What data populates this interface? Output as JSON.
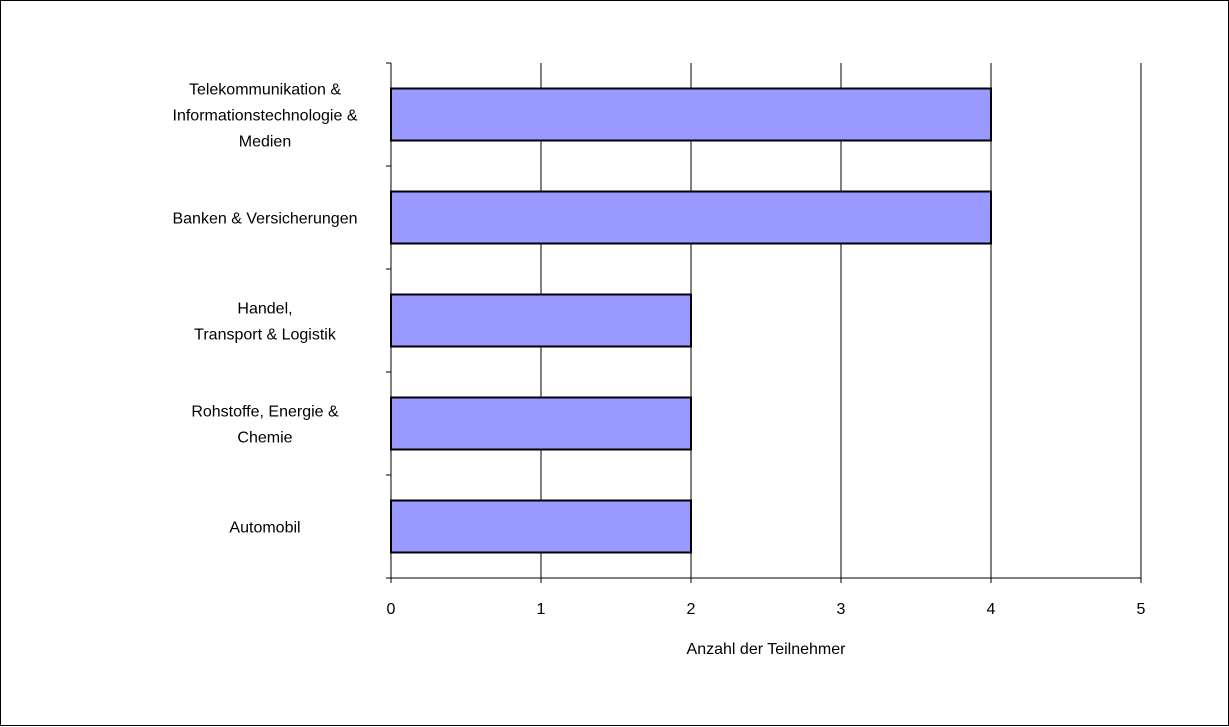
{
  "chart_data": {
    "type": "bar",
    "orientation": "horizontal",
    "categories": [
      [
        "Telekommunikation &",
        "Informationstechnologie &",
        "Medien"
      ],
      [
        "Banken & Versicherungen"
      ],
      [
        "Handel,",
        "Transport & Logistik"
      ],
      [
        "Rohstoffe, Energie &",
        "Chemie"
      ],
      [
        "Automobil"
      ]
    ],
    "values": [
      4,
      4,
      2,
      2,
      2
    ],
    "xlabel": "Anzahl der Teilnehmer",
    "ylabel": "",
    "title": "",
    "xlim": [
      0,
      5
    ],
    "xticks": [
      "0",
      "1",
      "2",
      "3",
      "4",
      "5"
    ],
    "grid": "vertical",
    "legend": "none",
    "bar_color": "#9999FF",
    "bar_edge_color": "#000000"
  }
}
